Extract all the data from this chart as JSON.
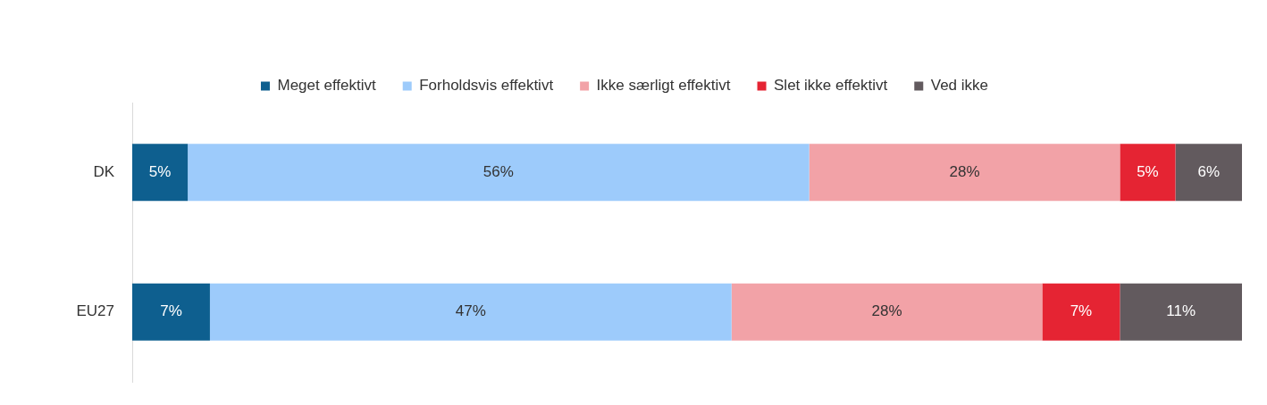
{
  "chart_data": {
    "type": "bar",
    "orientation": "horizontal",
    "stacked": true,
    "categories": [
      "DK",
      "EU27"
    ],
    "xlim": [
      0,
      100
    ],
    "tick_labels": "y",
    "legend": "top",
    "series": [
      {
        "name": "Meget effektivt",
        "color": "#0e5f8f",
        "values": [
          5,
          7
        ],
        "value_labels": [
          "5%",
          "7%"
        ]
      },
      {
        "name": "Forholdsvis effektivt",
        "color": "#9dcbfb",
        "values": [
          56,
          47
        ],
        "value_labels": [
          "56%",
          "47%"
        ]
      },
      {
        "name": "Ikke særligt effektivt",
        "color": "#f2a2a7",
        "values": [
          28,
          28
        ],
        "value_labels": [
          "28%",
          "28%"
        ]
      },
      {
        "name": "Slet ikke effektivt",
        "color": "#e52433",
        "values": [
          5,
          7
        ],
        "value_labels": [
          "5%",
          "7%"
        ]
      },
      {
        "name": "Ved ikke",
        "color": "#625a5e",
        "values": [
          6,
          11
        ],
        "value_labels": [
          "6%",
          "11%"
        ]
      }
    ]
  }
}
